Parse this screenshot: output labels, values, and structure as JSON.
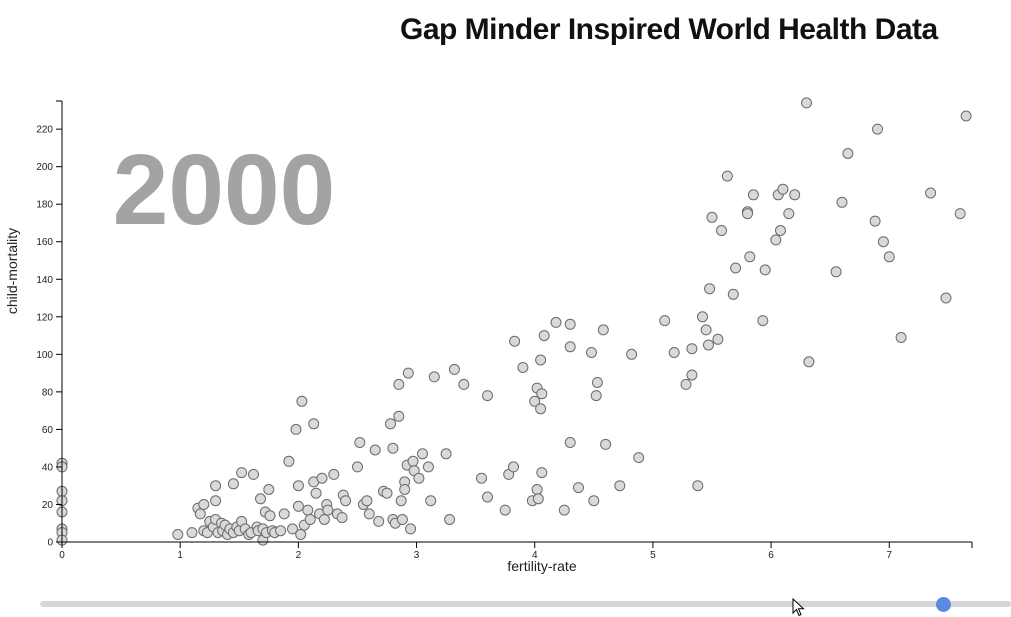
{
  "chart_data": {
    "type": "scatter",
    "title": "Gap Minder Inspired World Health Data",
    "xlabel": "fertility-rate",
    "ylabel": "child-mortality",
    "year": "2000",
    "xlim": [
      0,
      7.7
    ],
    "ylim": [
      0,
      235
    ],
    "x_ticks": [
      "0",
      "1",
      "2",
      "3",
      "4",
      "5",
      "6",
      "7"
    ],
    "y_ticks": [
      "0",
      "20",
      "40",
      "60",
      "80",
      "100",
      "120",
      "140",
      "160",
      "180",
      "200",
      "220"
    ],
    "grid": false,
    "legend": "none",
    "points": [
      [
        0.0,
        42
      ],
      [
        0.0,
        40
      ],
      [
        0.0,
        27
      ],
      [
        0.0,
        22
      ],
      [
        0.0,
        16
      ],
      [
        0.0,
        7
      ],
      [
        0.0,
        5
      ],
      [
        0.0,
        1
      ],
      [
        0.98,
        4
      ],
      [
        1.1,
        5
      ],
      [
        1.15,
        18
      ],
      [
        1.17,
        15
      ],
      [
        1.2,
        20
      ],
      [
        1.2,
        6
      ],
      [
        1.23,
        5
      ],
      [
        1.25,
        11
      ],
      [
        1.28,
        8
      ],
      [
        1.3,
        30
      ],
      [
        1.3,
        22
      ],
      [
        1.3,
        12
      ],
      [
        1.32,
        5
      ],
      [
        1.35,
        10
      ],
      [
        1.36,
        6
      ],
      [
        1.38,
        9
      ],
      [
        1.4,
        4
      ],
      [
        1.42,
        7
      ],
      [
        1.45,
        5
      ],
      [
        1.45,
        31
      ],
      [
        1.48,
        8
      ],
      [
        1.5,
        6
      ],
      [
        1.52,
        37
      ],
      [
        1.52,
        11
      ],
      [
        1.55,
        7
      ],
      [
        1.58,
        4
      ],
      [
        1.6,
        5
      ],
      [
        1.62,
        36
      ],
      [
        1.65,
        8
      ],
      [
        1.66,
        6
      ],
      [
        1.68,
        23
      ],
      [
        1.7,
        7
      ],
      [
        1.7,
        1
      ],
      [
        1.72,
        16
      ],
      [
        1.73,
        5
      ],
      [
        1.75,
        28
      ],
      [
        1.76,
        14
      ],
      [
        1.78,
        6
      ],
      [
        1.8,
        5
      ],
      [
        1.85,
        6
      ],
      [
        1.88,
        15
      ],
      [
        1.92,
        43
      ],
      [
        1.95,
        7
      ],
      [
        1.98,
        60
      ],
      [
        2.0,
        19
      ],
      [
        2.0,
        30
      ],
      [
        2.02,
        4
      ],
      [
        2.03,
        75
      ],
      [
        2.05,
        9
      ],
      [
        2.08,
        17
      ],
      [
        2.1,
        12
      ],
      [
        2.13,
        63
      ],
      [
        2.13,
        32
      ],
      [
        2.15,
        26
      ],
      [
        2.18,
        15
      ],
      [
        2.2,
        34
      ],
      [
        2.22,
        12
      ],
      [
        2.24,
        20
      ],
      [
        2.25,
        17
      ],
      [
        2.3,
        36
      ],
      [
        2.33,
        15
      ],
      [
        2.37,
        13
      ],
      [
        2.38,
        25
      ],
      [
        2.4,
        22
      ],
      [
        2.5,
        40
      ],
      [
        2.52,
        53
      ],
      [
        2.55,
        20
      ],
      [
        2.58,
        22
      ],
      [
        2.6,
        15
      ],
      [
        2.65,
        49
      ],
      [
        2.68,
        11
      ],
      [
        2.72,
        27
      ],
      [
        2.75,
        26
      ],
      [
        2.78,
        63
      ],
      [
        2.8,
        50
      ],
      [
        2.8,
        12
      ],
      [
        2.82,
        10
      ],
      [
        2.85,
        84
      ],
      [
        2.85,
        67
      ],
      [
        2.87,
        22
      ],
      [
        2.88,
        12
      ],
      [
        2.9,
        32
      ],
      [
        2.9,
        28
      ],
      [
        2.92,
        41
      ],
      [
        2.93,
        90
      ],
      [
        2.95,
        7
      ],
      [
        2.97,
        43
      ],
      [
        2.98,
        38
      ],
      [
        3.02,
        34
      ],
      [
        3.05,
        47
      ],
      [
        3.1,
        40
      ],
      [
        3.12,
        22
      ],
      [
        3.15,
        88
      ],
      [
        3.25,
        47
      ],
      [
        3.28,
        12
      ],
      [
        3.32,
        92
      ],
      [
        3.4,
        84
      ],
      [
        3.55,
        34
      ],
      [
        3.6,
        78
      ],
      [
        3.6,
        24
      ],
      [
        3.75,
        17
      ],
      [
        3.78,
        36
      ],
      [
        3.82,
        40
      ],
      [
        3.83,
        107
      ],
      [
        3.9,
        93
      ],
      [
        3.98,
        22
      ],
      [
        4.0,
        75
      ],
      [
        4.02,
        82
      ],
      [
        4.02,
        28
      ],
      [
        4.03,
        23
      ],
      [
        4.05,
        71
      ],
      [
        4.06,
        79
      ],
      [
        4.05,
        97
      ],
      [
        4.06,
        37
      ],
      [
        4.08,
        110
      ],
      [
        4.18,
        117
      ],
      [
        4.25,
        17
      ],
      [
        4.3,
        116
      ],
      [
        4.3,
        104
      ],
      [
        4.3,
        53
      ],
      [
        4.37,
        29
      ],
      [
        4.48,
        101
      ],
      [
        4.5,
        22
      ],
      [
        4.52,
        78
      ],
      [
        4.53,
        85
      ],
      [
        4.58,
        113
      ],
      [
        4.6,
        52
      ],
      [
        4.72,
        30
      ],
      [
        4.82,
        100
      ],
      [
        4.88,
        45
      ],
      [
        5.1,
        118
      ],
      [
        5.18,
        101
      ],
      [
        5.28,
        84
      ],
      [
        5.33,
        103
      ],
      [
        5.33,
        89
      ],
      [
        5.38,
        30
      ],
      [
        5.42,
        120
      ],
      [
        5.45,
        113
      ],
      [
        5.47,
        105
      ],
      [
        5.48,
        135
      ],
      [
        5.5,
        173
      ],
      [
        5.55,
        108
      ],
      [
        5.58,
        166
      ],
      [
        5.63,
        195
      ],
      [
        5.68,
        132
      ],
      [
        5.7,
        146
      ],
      [
        5.8,
        176
      ],
      [
        5.8,
        175
      ],
      [
        5.82,
        152
      ],
      [
        5.85,
        185
      ],
      [
        5.93,
        118
      ],
      [
        5.95,
        145
      ],
      [
        6.04,
        161
      ],
      [
        6.06,
        185
      ],
      [
        6.08,
        166
      ],
      [
        6.1,
        188
      ],
      [
        6.15,
        175
      ],
      [
        6.2,
        185
      ],
      [
        6.3,
        234
      ],
      [
        6.32,
        96
      ],
      [
        6.55,
        144
      ],
      [
        6.6,
        181
      ],
      [
        6.65,
        207
      ],
      [
        6.88,
        171
      ],
      [
        6.9,
        220
      ],
      [
        6.95,
        160
      ],
      [
        7.0,
        152
      ],
      [
        7.1,
        109
      ],
      [
        7.35,
        186
      ],
      [
        7.48,
        130
      ],
      [
        7.6,
        175
      ],
      [
        7.65,
        227
      ]
    ]
  },
  "slider": {
    "value_fraction": 0.93
  }
}
